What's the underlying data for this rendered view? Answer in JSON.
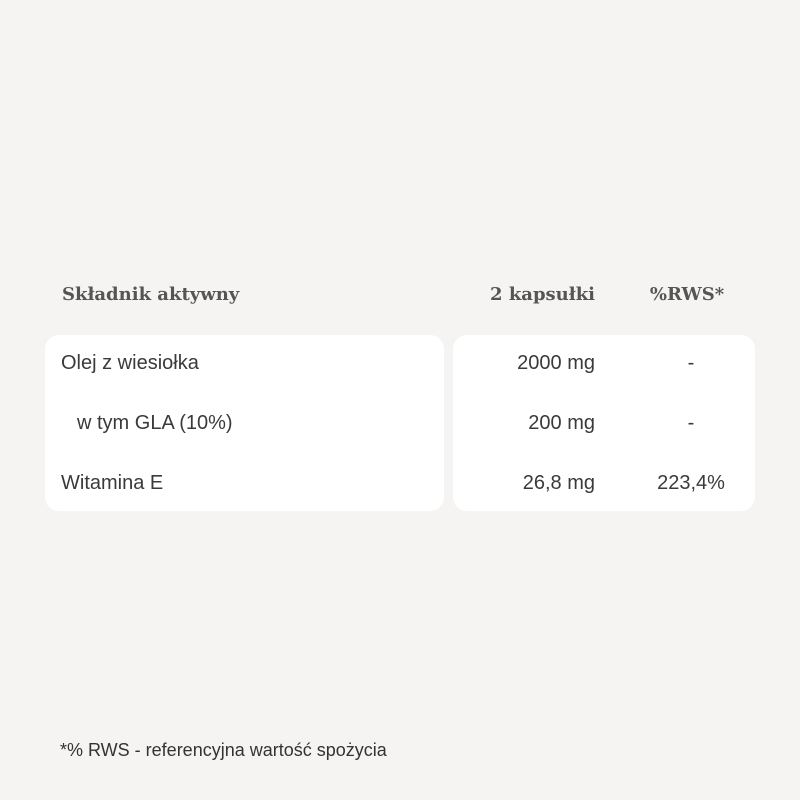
{
  "header": {
    "ingredient": "Składnik aktywny",
    "dose": "2 kapsułki",
    "rws": "%RWS*"
  },
  "rows": [
    {
      "name": "Olej z wiesiołka",
      "dose": "2000 mg",
      "rws": "-"
    },
    {
      "name": "w tym GLA (10%)",
      "dose": "200 mg",
      "rws": "-"
    },
    {
      "name": "Witamina E",
      "dose": "26,8 mg",
      "rws": "223,4%"
    }
  ],
  "footnote": "*% RWS - referencyjna wartość spożycia"
}
